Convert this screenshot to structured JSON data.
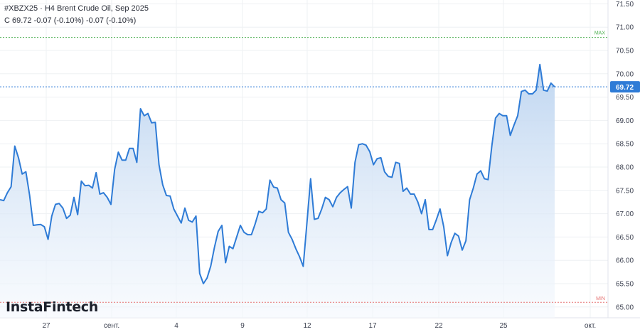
{
  "header": {
    "title": "#XBZX25 · H4 Brent Crude Oil, Sep 2025",
    "quote": "C 69.72 -0.07 (-0.10%) -0.07 (-0.10%)"
  },
  "logo": "InstaFintech",
  "colors": {
    "line": "#2e7bd6",
    "area_top": "#bcd4f0",
    "area_bottom": "#f4f8fd",
    "last_price": "#2e7bd6",
    "max_line": "#4caf50",
    "min_line": "#e57373"
  },
  "chart_data": {
    "type": "area",
    "y_ticks": [
      "71.50",
      "71.00",
      "70.50",
      "70.00",
      "69.50",
      "69.00",
      "68.50",
      "68.00",
      "67.50",
      "67.00",
      "66.50",
      "66.00",
      "65.50",
      "65.00"
    ],
    "ylim": [
      64.95,
      71.55
    ],
    "x_ticks": [
      "27",
      "сент.",
      "4",
      "9",
      "12",
      "17",
      "22",
      "25",
      "окт."
    ],
    "last_price": 69.72,
    "max": {
      "label": "MAX",
      "value": 70.78
    },
    "min": {
      "label": "MIN",
      "value": 65.1
    },
    "grid": true,
    "values": [
      67.3,
      67.28,
      67.45,
      67.58,
      68.45,
      68.2,
      67.85,
      67.9,
      67.4,
      66.75,
      66.76,
      66.77,
      66.72,
      66.45,
      66.95,
      67.2,
      67.22,
      67.12,
      66.9,
      66.97,
      67.35,
      66.98,
      67.7,
      67.6,
      67.61,
      67.55,
      67.88,
      67.42,
      67.45,
      67.35,
      67.2,
      67.95,
      68.32,
      68.15,
      68.15,
      68.4,
      68.4,
      68.1,
      69.25,
      69.1,
      69.15,
      68.95,
      68.96,
      68.05,
      67.62,
      67.39,
      67.38,
      67.1,
      66.95,
      66.8,
      67.12,
      66.86,
      66.82,
      66.95,
      65.72,
      65.5,
      65.62,
      65.88,
      66.28,
      66.62,
      66.75,
      65.95,
      66.3,
      66.25,
      66.5,
      66.75,
      66.6,
      66.55,
      66.55,
      66.78,
      67.05,
      67.02,
      67.1,
      67.72,
      67.57,
      67.55,
      67.3,
      67.23,
      66.6,
      66.45,
      66.25,
      66.08,
      65.87,
      66.8,
      67.75,
      66.88,
      66.9,
      67.1,
      67.35,
      67.3,
      67.15,
      67.35,
      67.45,
      67.52,
      67.58,
      67.12,
      68.1,
      68.48,
      68.5,
      68.47,
      68.33,
      68.05,
      68.18,
      68.2,
      67.9,
      67.8,
      67.78,
      68.1,
      68.08,
      67.48,
      67.55,
      67.42,
      67.42,
      67.25,
      67.0,
      67.3,
      66.66,
      66.66,
      66.87,
      67.1,
      66.72,
      66.1,
      66.38,
      66.58,
      66.52,
      66.22,
      66.42,
      67.3,
      67.55,
      67.85,
      67.92,
      67.75,
      67.73,
      68.45,
      69.05,
      69.15,
      69.1,
      69.1,
      68.68,
      68.9,
      69.1,
      69.62,
      69.65,
      69.57,
      69.57,
      69.65,
      70.2,
      69.65,
      69.63,
      69.8,
      69.72
    ]
  }
}
